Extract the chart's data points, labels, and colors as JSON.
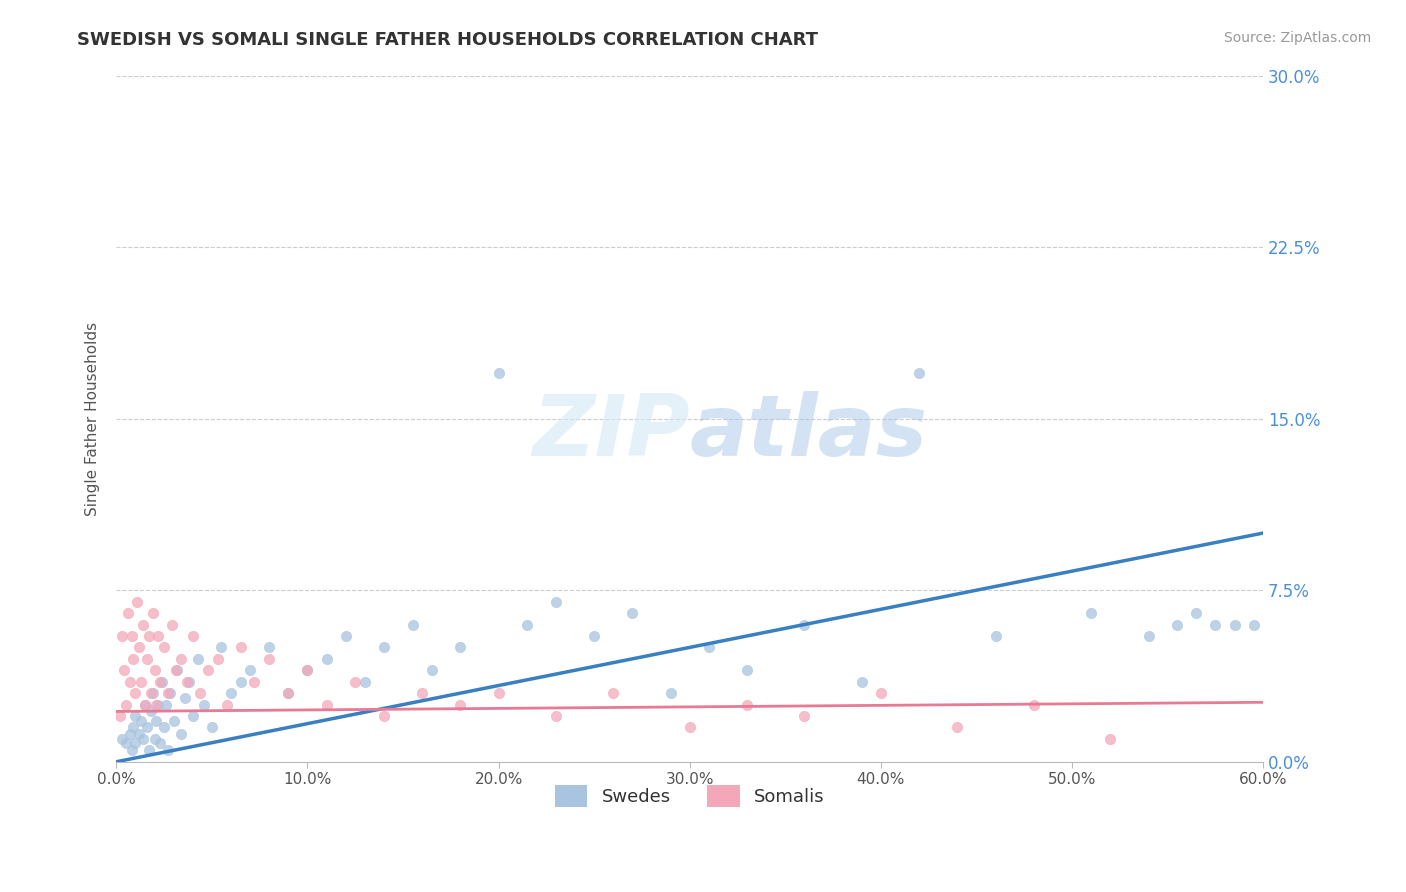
{
  "title": "SWEDISH VS SOMALI SINGLE FATHER HOUSEHOLDS CORRELATION CHART",
  "source": "Source: ZipAtlas.com",
  "ylabel": "Single Father Households",
  "xlabel_ticks": [
    "0.0%",
    "10.0%",
    "20.0%",
    "30.0%",
    "40.0%",
    "50.0%",
    "60.0%"
  ],
  "xlabel_vals": [
    0.0,
    0.1,
    0.2,
    0.3,
    0.4,
    0.5,
    0.6
  ],
  "ytick_labels": [
    "0.0%",
    "7.5%",
    "15.0%",
    "22.5%",
    "30.0%"
  ],
  "ytick_vals": [
    0.0,
    0.075,
    0.15,
    0.225,
    0.3
  ],
  "xmin": 0.0,
  "xmax": 0.6,
  "ymin": 0.0,
  "ymax": 0.3,
  "swede_color": "#a8c4e0",
  "somali_color": "#f4a7b9",
  "swede_line_color": "#3a7fc1",
  "somali_line_color": "#e87a95",
  "legend_label_swede": "Swedes",
  "legend_label_somali": "Somalis",
  "swede_trendline_x0": 0.0,
  "swede_trendline_y0": 0.0,
  "swede_trendline_x1": 0.6,
  "swede_trendline_y1": 0.1,
  "somali_trendline_x0": 0.0,
  "somali_trendline_y0": 0.022,
  "somali_trendline_x1": 0.6,
  "somali_trendline_y1": 0.026,
  "swede_x": [
    0.003,
    0.005,
    0.007,
    0.008,
    0.009,
    0.01,
    0.01,
    0.012,
    0.013,
    0.014,
    0.015,
    0.016,
    0.017,
    0.018,
    0.019,
    0.02,
    0.021,
    0.022,
    0.023,
    0.024,
    0.025,
    0.026,
    0.027,
    0.028,
    0.03,
    0.032,
    0.034,
    0.036,
    0.038,
    0.04,
    0.043,
    0.046,
    0.05,
    0.055,
    0.06,
    0.065,
    0.07,
    0.08,
    0.09,
    0.1,
    0.11,
    0.12,
    0.13,
    0.14,
    0.155,
    0.165,
    0.18,
    0.2,
    0.215,
    0.23,
    0.25,
    0.27,
    0.29,
    0.31,
    0.33,
    0.36,
    0.39,
    0.42,
    0.46,
    0.51,
    0.54,
    0.555,
    0.565,
    0.575,
    0.585,
    0.595
  ],
  "swede_y": [
    0.01,
    0.008,
    0.012,
    0.005,
    0.015,
    0.008,
    0.02,
    0.012,
    0.018,
    0.01,
    0.025,
    0.015,
    0.005,
    0.022,
    0.03,
    0.01,
    0.018,
    0.025,
    0.008,
    0.035,
    0.015,
    0.025,
    0.005,
    0.03,
    0.018,
    0.04,
    0.012,
    0.028,
    0.035,
    0.02,
    0.045,
    0.025,
    0.015,
    0.05,
    0.03,
    0.035,
    0.04,
    0.05,
    0.03,
    0.04,
    0.045,
    0.055,
    0.035,
    0.05,
    0.06,
    0.04,
    0.05,
    0.17,
    0.06,
    0.07,
    0.055,
    0.065,
    0.03,
    0.05,
    0.04,
    0.06,
    0.035,
    0.17,
    0.055,
    0.065,
    0.055,
    0.06,
    0.065,
    0.06,
    0.06,
    0.06
  ],
  "somali_x": [
    0.002,
    0.003,
    0.004,
    0.005,
    0.006,
    0.007,
    0.008,
    0.009,
    0.01,
    0.011,
    0.012,
    0.013,
    0.014,
    0.015,
    0.016,
    0.017,
    0.018,
    0.019,
    0.02,
    0.021,
    0.022,
    0.023,
    0.025,
    0.027,
    0.029,
    0.031,
    0.034,
    0.037,
    0.04,
    0.044,
    0.048,
    0.053,
    0.058,
    0.065,
    0.072,
    0.08,
    0.09,
    0.1,
    0.11,
    0.125,
    0.14,
    0.16,
    0.18,
    0.2,
    0.23,
    0.26,
    0.3,
    0.33,
    0.36,
    0.4,
    0.44,
    0.48,
    0.52
  ],
  "somali_y": [
    0.02,
    0.055,
    0.04,
    0.025,
    0.065,
    0.035,
    0.055,
    0.045,
    0.03,
    0.07,
    0.05,
    0.035,
    0.06,
    0.025,
    0.045,
    0.055,
    0.03,
    0.065,
    0.04,
    0.025,
    0.055,
    0.035,
    0.05,
    0.03,
    0.06,
    0.04,
    0.045,
    0.035,
    0.055,
    0.03,
    0.04,
    0.045,
    0.025,
    0.05,
    0.035,
    0.045,
    0.03,
    0.04,
    0.025,
    0.035,
    0.02,
    0.03,
    0.025,
    0.03,
    0.02,
    0.03,
    0.015,
    0.025,
    0.02,
    0.03,
    0.015,
    0.025,
    0.01
  ]
}
